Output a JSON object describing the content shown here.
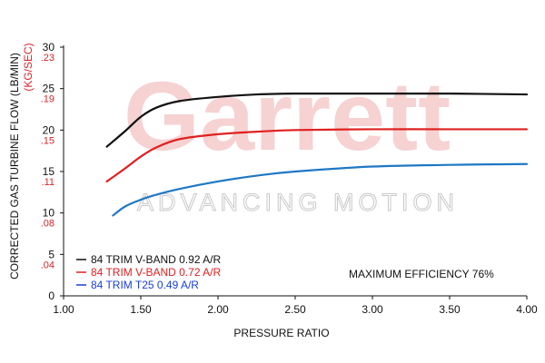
{
  "watermark": {
    "logo": "Garrett",
    "tagline": "ADVANCING MOTION"
  },
  "chart_data": {
    "type": "line",
    "title": "",
    "xlabel": "PRESSURE RATIO",
    "ylabel": "CORRECTED GAS TURBINE FLOW (LB/MIN)",
    "ylabel_alt": "(KG/SEC)",
    "xlim": [
      1.0,
      4.0
    ],
    "ylim": [
      0,
      30
    ],
    "x_ticks": [
      "1.00",
      "1.50",
      "2.00",
      "2.50",
      "3.00",
      "3.50",
      "4.00"
    ],
    "x_tick_values": [
      1.0,
      1.5,
      2.0,
      2.5,
      3.0,
      3.5,
      4.0
    ],
    "y_ticks": [
      "0",
      "5",
      "10",
      "15",
      "20",
      "25",
      "30"
    ],
    "y_tick_values": [
      0,
      5,
      10,
      15,
      20,
      25,
      30
    ],
    "y_alt_ticks": [
      ".04",
      ".08",
      ".11",
      ".15",
      ".19",
      ".23"
    ],
    "y_alt_tick_values": [
      5,
      10,
      15,
      20,
      25,
      30
    ],
    "annotation": "MAXIMUM EFFICIENCY 76%",
    "legend_position": "bottom-left",
    "grid": false,
    "series": [
      {
        "name": "84 TRIM V-BAND 0.92 A/R",
        "color": "#111111",
        "legend_color": "#111111",
        "x": [
          1.28,
          1.4,
          1.5,
          1.6,
          1.75,
          2.0,
          2.25,
          2.5,
          3.0,
          3.5,
          4.0
        ],
        "y": [
          18.0,
          19.9,
          21.6,
          22.7,
          23.5,
          24.0,
          24.3,
          24.4,
          24.4,
          24.4,
          24.3
        ]
      },
      {
        "name": "84 TRIM V-BAND 0.72 A/R",
        "color": "#e02020",
        "legend_color": "#e02020",
        "x": [
          1.28,
          1.4,
          1.5,
          1.6,
          1.75,
          2.0,
          2.25,
          2.5,
          3.0,
          3.5,
          4.0
        ],
        "y": [
          13.8,
          15.4,
          16.8,
          17.9,
          18.9,
          19.5,
          19.8,
          20.0,
          20.1,
          20.1,
          20.1
        ]
      },
      {
        "name": "84 TRIM T25 0.49 A/R",
        "color": "#1f78c4",
        "legend_color": "#1a3fd6",
        "x": [
          1.32,
          1.4,
          1.5,
          1.6,
          1.75,
          2.0,
          2.25,
          2.5,
          3.0,
          3.5,
          4.0
        ],
        "y": [
          9.7,
          10.8,
          11.6,
          12.2,
          12.9,
          13.8,
          14.5,
          15.0,
          15.6,
          15.8,
          15.9
        ]
      }
    ]
  }
}
